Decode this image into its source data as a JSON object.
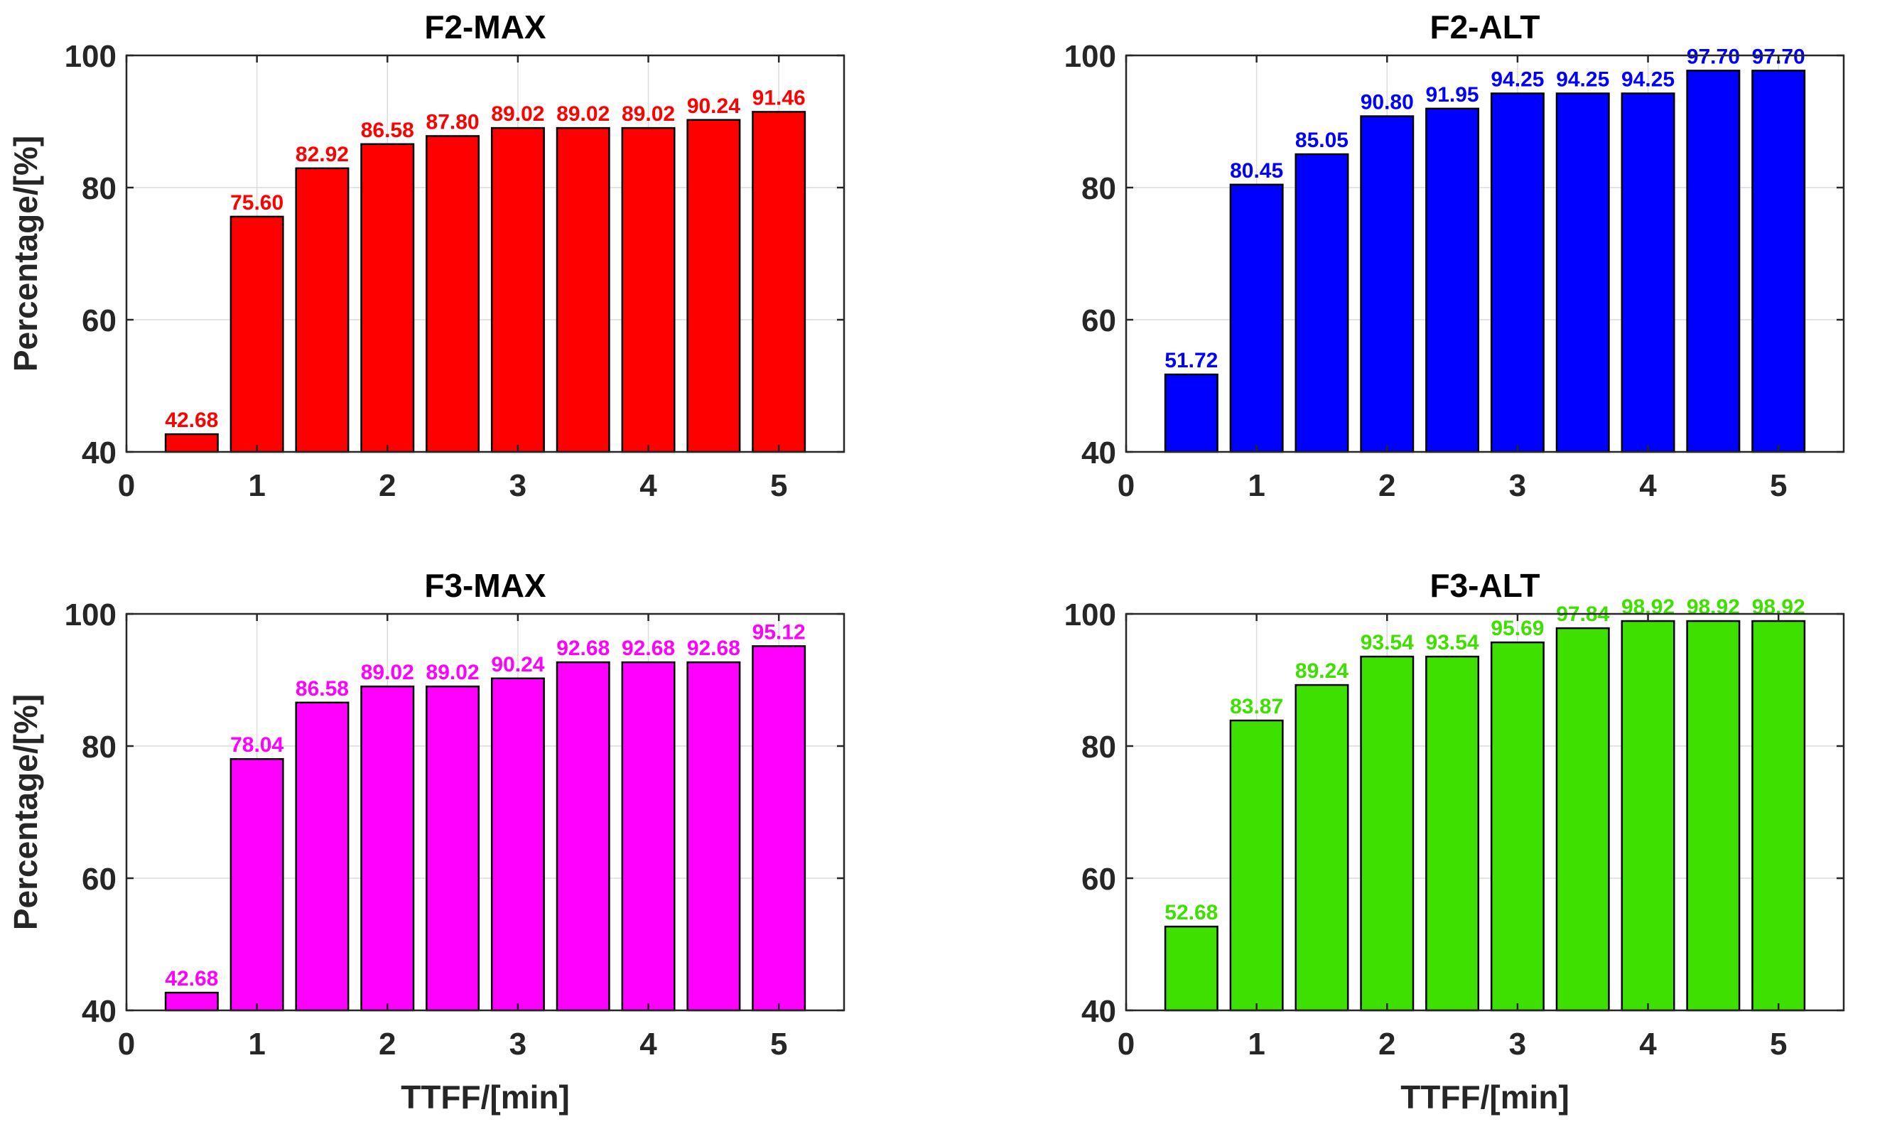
{
  "chart_data": [
    {
      "type": "bar",
      "title": "F2-MAX",
      "xlabel": "",
      "ylabel": "Percentage/[%]",
      "x": [
        0.5,
        1.0,
        1.5,
        2.0,
        2.5,
        3.0,
        3.5,
        4.0,
        4.5,
        5.0
      ],
      "values": [
        42.68,
        75.6,
        82.92,
        86.58,
        87.8,
        89.02,
        89.02,
        89.02,
        90.24,
        91.46
      ],
      "labels": [
        "42.68",
        "75.60",
        "82.92",
        "86.58",
        "87.80",
        "89.02",
        "89.02",
        "89.02",
        "90.24",
        "91.46"
      ],
      "xlim": [
        0,
        5.5
      ],
      "ylim": [
        40,
        100
      ],
      "xticks": [
        "0",
        "1",
        "2",
        "3",
        "4",
        "5"
      ],
      "yticks": [
        "40",
        "60",
        "80",
        "100"
      ],
      "color": "#ff0000",
      "label_color": "#ff0000",
      "grid": true
    },
    {
      "type": "bar",
      "title": "F2-ALT",
      "xlabel": "",
      "ylabel": "",
      "x": [
        0.5,
        1.0,
        1.5,
        2.0,
        2.5,
        3.0,
        3.5,
        4.0,
        4.5,
        5.0
      ],
      "values": [
        51.72,
        80.45,
        85.05,
        90.8,
        91.95,
        94.25,
        94.25,
        94.25,
        97.7,
        97.7
      ],
      "labels": [
        "51.72",
        "80.45",
        "85.05",
        "90.80",
        "91.95",
        "94.25",
        "94.25",
        "94.25",
        "97.70",
        "97.70"
      ],
      "xlim": [
        0,
        5.5
      ],
      "ylim": [
        40,
        100
      ],
      "xticks": [
        "0",
        "1",
        "2",
        "3",
        "4",
        "5"
      ],
      "yticks": [
        "40",
        "60",
        "80",
        "100"
      ],
      "color": "#0000ff",
      "label_color": "#0000ff",
      "grid": true
    },
    {
      "type": "bar",
      "title": "F3-MAX",
      "xlabel": "TTFF/[min]",
      "ylabel": "Percentage/[%]",
      "x": [
        0.5,
        1.0,
        1.5,
        2.0,
        2.5,
        3.0,
        3.5,
        4.0,
        4.5,
        5.0
      ],
      "values": [
        42.68,
        78.04,
        86.58,
        89.02,
        89.02,
        90.24,
        92.68,
        92.68,
        92.68,
        95.12
      ],
      "labels": [
        "42.68",
        "78.04",
        "86.58",
        "89.02",
        "89.02",
        "90.24",
        "92.68",
        "92.68",
        "92.68",
        "95.12"
      ],
      "xlim": [
        0,
        5.5
      ],
      "ylim": [
        40,
        100
      ],
      "xticks": [
        "0",
        "1",
        "2",
        "3",
        "4",
        "5"
      ],
      "yticks": [
        "40",
        "60",
        "80",
        "100"
      ],
      "color": "#ff00ff",
      "label_color": "#ff00ff",
      "grid": true
    },
    {
      "type": "bar",
      "title": "F3-ALT",
      "xlabel": "TTFF/[min]",
      "ylabel": "",
      "x": [
        0.5,
        1.0,
        1.5,
        2.0,
        2.5,
        3.0,
        3.5,
        4.0,
        4.5,
        5.0
      ],
      "values": [
        52.68,
        83.87,
        89.24,
        93.54,
        93.54,
        95.69,
        97.84,
        98.92,
        98.92,
        98.92
      ],
      "labels": [
        "52.68",
        "83.87",
        "89.24",
        "93.54",
        "93.54",
        "95.69",
        "97.84",
        "98.92",
        "98.92",
        "98.92"
      ],
      "xlim": [
        0,
        5.5
      ],
      "ylim": [
        40,
        100
      ],
      "xticks": [
        "0",
        "1",
        "2",
        "3",
        "4",
        "5"
      ],
      "yticks": [
        "40",
        "60",
        "80",
        "100"
      ],
      "color": "#3ee000",
      "label_color": "#3ee000",
      "grid": true
    }
  ]
}
